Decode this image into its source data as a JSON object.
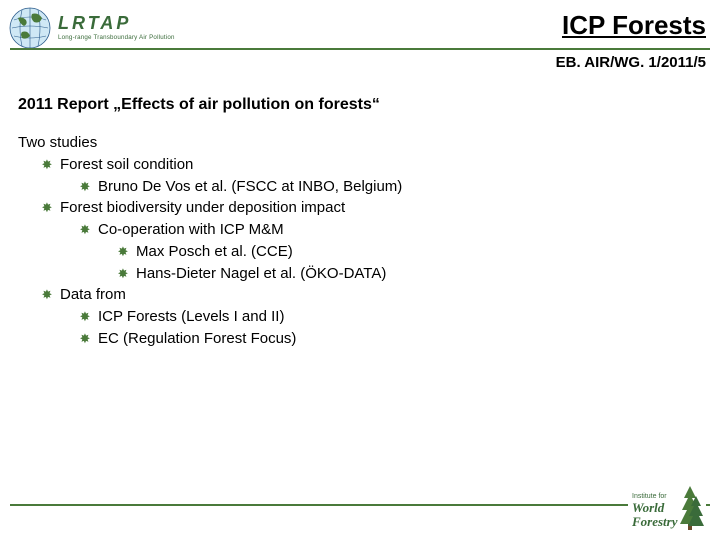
{
  "colors": {
    "accent_green": "#4a7a3a",
    "logo_green": "#3a6b3a",
    "text": "#000000",
    "background": "#ffffff"
  },
  "header": {
    "logo_main": "LRTAP",
    "logo_sub": "Long-range Transboundary Air Pollution",
    "title": "ICP Forests",
    "doc_ref": "EB. AIR/WG. 1/2011/5"
  },
  "content": {
    "report_title": "2011 Report „Effects of air pollution on forests“",
    "lines": [
      {
        "level": 0,
        "bullet": false,
        "text": "Two studies"
      },
      {
        "level": 1,
        "bullet": true,
        "text": "Forest soil condition"
      },
      {
        "level": 2,
        "bullet": true,
        "text": "Bruno De Vos et al. (FSCC at INBO, Belgium)"
      },
      {
        "level": 1,
        "bullet": true,
        "text": "Forest biodiversity under deposition impact"
      },
      {
        "level": 2,
        "bullet": true,
        "text": "Co-operation with ICP M&M"
      },
      {
        "level": 3,
        "bullet": true,
        "text": "Max Posch et al. (CCE)"
      },
      {
        "level": 3,
        "bullet": true,
        "text": "Hans-Dieter Nagel et al. (ÖKO-DATA)"
      },
      {
        "level": 1,
        "bullet": true,
        "text": "Data from"
      },
      {
        "level": 2,
        "bullet": true,
        "text": "ICP Forests (Levels I and II)"
      },
      {
        "level": 2,
        "bullet": true,
        "text": "EC (Regulation Forest Focus)"
      }
    ]
  },
  "footer": {
    "logo_line1": "Institute for",
    "logo_line2": "World",
    "logo_line3": "Forestry"
  }
}
